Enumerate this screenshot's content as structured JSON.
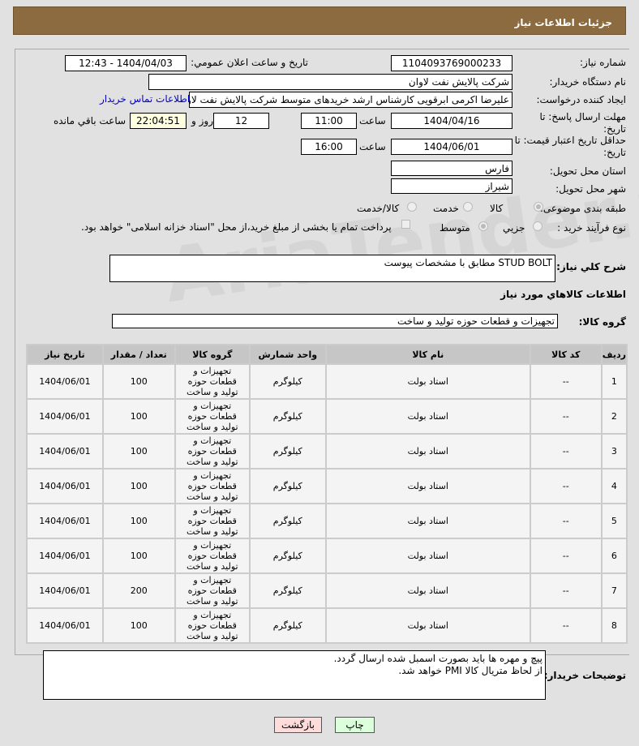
{
  "header": {
    "title": "جزئیات اطلاعات نیاز"
  },
  "form": {
    "need_number_label": "شماره نیاز:",
    "need_number": "1104093769000233",
    "announce_label": "تاریخ و ساعت اعلان عمومي:",
    "announce_value": "1404/04/03 - 12:43",
    "buyer_label": "نام دستگاه خریدار:",
    "buyer": "شرکت پالایش نفت لاوان",
    "creator_label": "ایجاد کننده درخواست:",
    "creator": "علیرضا اکرمی ابرقویی کارشناس ارشد خریدهای متوسط شرکت پالایش نفت لاو",
    "contact_link": "اطلاعات تماس خریدار",
    "deadline_label": "مهلت ارسال پاسخ: تا تاریخ:",
    "deadline_date": "1404/04/16",
    "time_label": "ساعت",
    "deadline_time": "11:00",
    "days": "12",
    "days_label": "روز و",
    "remaining": "22:04:51",
    "remaining_label": "ساعت باقي مانده",
    "validity_label": "حداقل تاریخ اعتبار قیمت: تا تاریخ:",
    "validity_date": "1404/06/01",
    "validity_time": "16:00",
    "province_label": "استان محل تحویل:",
    "province": "فارس",
    "city_label": "شهر محل تحویل:",
    "city": "شیراز",
    "category_label": "طبقه بندی موضوعی:",
    "category_options": [
      "کالا",
      "خدمت",
      "کالا/خدمت"
    ],
    "process_label": "نوع فرآیند خرید :",
    "process_options": [
      "جزیي",
      "متوسط"
    ],
    "payment_note": "پرداخت تمام یا بخشی از مبلغ خرید،از محل \"اسناد خزانه اسلامی\" خواهد بود.",
    "description_label": "شرح کلي نیاز:",
    "description": "STUD BOLT  مطابق با مشخصات پیوست",
    "goods_section": "اطلاعات کالاهاي مورد نیاز",
    "goods_group_label": "گروه کالا:",
    "goods_group": "تجهیزات و قطعات حوزه تولید و ساخت"
  },
  "table": {
    "headers": [
      "ردیف",
      "کد کالا",
      "نام کالا",
      "واحد شمارش",
      "گروه کالا",
      "تعداد / مقدار",
      "تاریخ نیاز"
    ],
    "rows": [
      [
        "1",
        "--",
        "استاد بولت",
        "کیلوگرم",
        "تجهیزات و قطعات حوزه تولید و ساخت",
        "100",
        "1404/06/01"
      ],
      [
        "2",
        "--",
        "استاد بولت",
        "کیلوگرم",
        "تجهیزات و قطعات حوزه تولید و ساخت",
        "100",
        "1404/06/01"
      ],
      [
        "3",
        "--",
        "استاد بولت",
        "کیلوگرم",
        "تجهیزات و قطعات حوزه تولید و ساخت",
        "100",
        "1404/06/01"
      ],
      [
        "4",
        "--",
        "استاد بولت",
        "کیلوگرم",
        "تجهیزات و قطعات حوزه تولید و ساخت",
        "100",
        "1404/06/01"
      ],
      [
        "5",
        "--",
        "استاد بولت",
        "کیلوگرم",
        "تجهیزات و قطعات حوزه تولید و ساخت",
        "100",
        "1404/06/01"
      ],
      [
        "6",
        "--",
        "استاد بولت",
        "کیلوگرم",
        "تجهیزات و قطعات حوزه تولید و ساخت",
        "100",
        "1404/06/01"
      ],
      [
        "7",
        "--",
        "استاد بولت",
        "کیلوگرم",
        "تجهیزات و قطعات حوزه تولید و ساخت",
        "200",
        "1404/06/01"
      ],
      [
        "8",
        "--",
        "استاد بولت",
        "کیلوگرم",
        "تجهیزات و قطعات حوزه تولید و ساخت",
        "100",
        "1404/06/01"
      ]
    ]
  },
  "notes": {
    "label": "توضیحات خریدار:",
    "lines": [
      "پیچ و مهره ها باید بصورت اسمبل شده ارسال گردد.",
      "از لحاظ متریال کالا PMI خواهد شد."
    ]
  },
  "buttons": {
    "print": "چاپ",
    "back": "بازگشت"
  },
  "watermark": "AriaTender.net"
}
